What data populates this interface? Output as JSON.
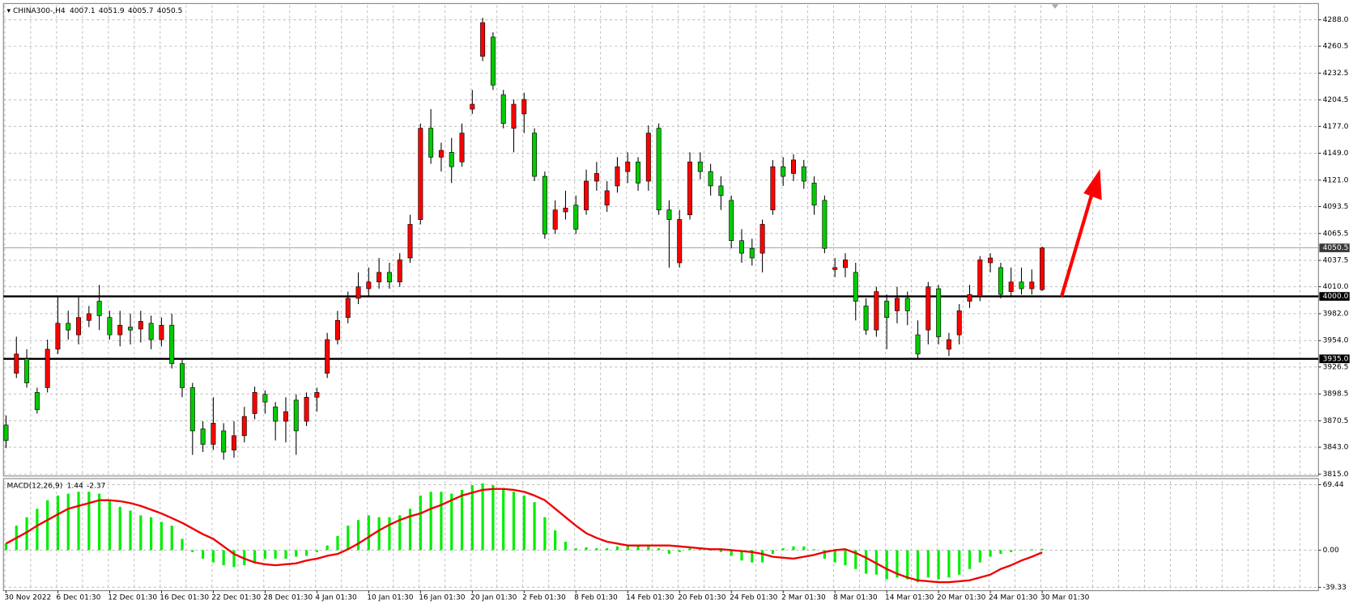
{
  "chart_data": [
    {
      "type": "candlestick",
      "title": "CHINA300-,H4",
      "title_values": [
        4007.1,
        4051.9,
        4005.7,
        4050.5
      ],
      "categories": [
        "30 Nov 2022",
        null,
        null,
        null,
        null,
        "6 Dec 01:30",
        null,
        null,
        null,
        null,
        "12 Dec 01:30",
        null,
        null,
        null,
        null,
        "16 Dec 01:30",
        null,
        null,
        null,
        null,
        "22 Dec 01:30",
        null,
        null,
        null,
        null,
        "28 Dec 01:30",
        null,
        null,
        null,
        null,
        "4 Jan 01:30",
        null,
        null,
        null,
        null,
        "10 Jan 01:30",
        null,
        null,
        null,
        null,
        "16 Jan 01:30",
        null,
        null,
        null,
        null,
        "20 Jan 01:30",
        null,
        null,
        null,
        null,
        "2 Feb 01:30",
        null,
        null,
        null,
        null,
        "8 Feb 01:30",
        null,
        null,
        null,
        null,
        "14 Feb 01:30",
        null,
        null,
        null,
        null,
        "20 Feb 01:30",
        null,
        null,
        null,
        null,
        "24 Feb 01:30",
        null,
        null,
        null,
        null,
        "2 Mar 01:30",
        null,
        null,
        null,
        null,
        "8 Mar 01:30",
        null,
        null,
        null,
        null,
        "14 Mar 01:30",
        null,
        null,
        null,
        null,
        "20 Mar 01:30",
        null,
        null,
        null,
        null,
        "24 Mar 01:30",
        null,
        null,
        null,
        null,
        "30 Mar 01:30"
      ],
      "open": [
        3866,
        3920,
        3935,
        3900,
        3905,
        3945,
        3972,
        3960,
        3975,
        3995,
        3978,
        3960,
        3968,
        3966,
        3972,
        3955,
        3970,
        3930,
        3905,
        3862,
        3846,
        3860,
        3840,
        3855,
        3878,
        3898,
        3885,
        3870,
        3892,
        3870,
        3895,
        3920,
        3955,
        3978,
        3998,
        4008,
        4015,
        4025,
        4015,
        4040,
        4080,
        4175,
        4145,
        4150,
        4140,
        4195,
        4250,
        4270,
        4210,
        4175,
        4190,
        4170,
        4125,
        4070,
        4088,
        4095,
        4090,
        4120,
        4095,
        4115,
        4130,
        4140,
        4120,
        4175,
        4090,
        4035,
        4085,
        4140,
        4130,
        4115,
        4100,
        4058,
        4050,
        4045,
        4090,
        4135,
        4128,
        4135,
        4118,
        4100,
        4028,
        4030,
        4025,
        3990,
        3965,
        3995,
        3985,
        3998,
        3960,
        3965,
        4008,
        3945,
        3960,
        3995,
        4000,
        4035,
        4030,
        4005,
        4015,
        4008,
        4007.1
      ],
      "high": [
        3876,
        3958,
        3945,
        3905,
        3955,
        4000,
        3985,
        4000,
        3990,
        4012,
        3985,
        3985,
        3982,
        3985,
        3980,
        3978,
        3982,
        3935,
        3910,
        3870,
        3895,
        3868,
        3870,
        3885,
        3906,
        3902,
        3890,
        3895,
        3898,
        3900,
        3905,
        3962,
        3985,
        4005,
        4025,
        4030,
        4040,
        4035,
        4045,
        4085,
        4180,
        4195,
        4160,
        4165,
        4180,
        4215,
        4290,
        4275,
        4215,
        4205,
        4212,
        4175,
        4130,
        4100,
        4110,
        4105,
        4132,
        4140,
        4120,
        4145,
        4150,
        4145,
        4178,
        4180,
        4100,
        4090,
        4150,
        4150,
        4138,
        4125,
        4105,
        4070,
        4060,
        4080,
        4142,
        4145,
        4148,
        4142,
        4125,
        4105,
        4040,
        4045,
        4035,
        3998,
        4010,
        4002,
        4010,
        4005,
        3975,
        4015,
        4012,
        3962,
        3992,
        4012,
        4042,
        4045,
        4035,
        4030,
        4030,
        4028,
        4051.9
      ],
      "low": [
        3842,
        3915,
        3905,
        3878,
        3900,
        3940,
        3955,
        3950,
        3968,
        3965,
        3955,
        3948,
        3950,
        3952,
        3945,
        3948,
        3925,
        3895,
        3835,
        3838,
        3840,
        3830,
        3832,
        3848,
        3872,
        3878,
        3850,
        3848,
        3835,
        3865,
        3880,
        3915,
        3950,
        3972,
        3992,
        4000,
        4008,
        4008,
        4010,
        4035,
        4075,
        4138,
        4130,
        4118,
        4135,
        4190,
        4245,
        4215,
        4175,
        4150,
        4170,
        4120,
        4060,
        4065,
        4080,
        4065,
        4085,
        4110,
        4088,
        4108,
        4118,
        4110,
        4110,
        4085,
        4030,
        4030,
        4080,
        4122,
        4105,
        4090,
        4050,
        4035,
        4032,
        4025,
        4085,
        4115,
        4120,
        4112,
        4085,
        4045,
        4020,
        4020,
        3975,
        3960,
        3958,
        3945,
        3972,
        3970,
        3935,
        3950,
        3950,
        3938,
        3950,
        3988,
        3995,
        4025,
        3998,
        4000,
        4002,
        4002,
        4005.7
      ],
      "close": [
        3850,
        3940,
        3910,
        3882,
        3945,
        3972,
        3965,
        3978,
        3982,
        3980,
        3960,
        3970,
        3965,
        3974,
        3955,
        3970,
        3930,
        3905,
        3860,
        3846,
        3868,
        3838,
        3855,
        3875,
        3900,
        3890,
        3870,
        3880,
        3860,
        3895,
        3900,
        3955,
        3975,
        3998,
        4010,
        4015,
        4025,
        4015,
        4038,
        4075,
        4175,
        4145,
        4152,
        4135,
        4170,
        4200,
        4285,
        4220,
        4180,
        4200,
        4205,
        4125,
        4065,
        4090,
        4092,
        4070,
        4120,
        4128,
        4110,
        4135,
        4140,
        4118,
        4170,
        4090,
        4080,
        4080,
        4140,
        4130,
        4115,
        4105,
        4058,
        4045,
        4040,
        4075,
        4135,
        4125,
        4142,
        4120,
        4095,
        4050,
        4030,
        4038,
        3995,
        3965,
        4005,
        3978,
        3998,
        3985,
        3940,
        4010,
        3958,
        3955,
        3985,
        4002,
        4038,
        4040,
        4002,
        4015,
        4008,
        4015,
        4050.5
      ],
      "up_color": "#ff0000",
      "down_color": "#00cc00",
      "ylim": [
        3813,
        4304
      ],
      "yticks": [
        {
          "value": 4288,
          "label": "4288.0"
        },
        4260.5,
        4232.5,
        4204.5,
        {
          "value": 4177,
          "label": "4177.0"
        },
        {
          "value": 4149,
          "label": "4149.0"
        },
        {
          "value": 4121,
          "label": "4121.0"
        },
        4093.5,
        4065.5,
        4037.5,
        {
          "value": 4010,
          "label": "4010.0"
        },
        {
          "value": 3982,
          "label": "3982.0"
        },
        {
          "value": 3954,
          "label": "3954.0"
        },
        3926.5,
        3898.5,
        3870.5,
        {
          "value": 3843,
          "label": "3843.0"
        },
        {
          "value": 3815,
          "label": "3815.0"
        }
      ],
      "grid": true,
      "hlines": [
        {
          "value": 4000,
          "label": "4000.0"
        },
        {
          "value": 3935,
          "label": "3935.0"
        }
      ],
      "current_price": 4050.5
    },
    {
      "type": "macd",
      "title": "MACD(12,26,9)",
      "title_values": [
        1.44,
        -2.37
      ],
      "series": [
        {
          "color": "#00ee00",
          "values": [
            7,
            26,
            35,
            44,
            53,
            58,
            60,
            62,
            62,
            60,
            53,
            46,
            42,
            37,
            35,
            30,
            26,
            12,
            -2,
            -9,
            -13,
            -16,
            -18,
            -16,
            -13,
            -9,
            -9,
            -9,
            -7,
            -6,
            -2,
            5,
            15,
            26,
            32,
            37,
            35,
            35,
            37,
            44,
            58,
            62,
            62,
            60,
            64,
            69,
            71,
            69,
            66,
            62,
            58,
            51,
            35,
            21,
            9,
            2,
            3,
            2,
            2,
            4,
            5,
            5,
            5,
            2,
            -4,
            -2,
            2,
            2,
            0,
            -2,
            -6,
            -11,
            -13,
            -13,
            -4,
            2,
            4,
            4,
            1,
            -9,
            -13,
            -16,
            -20,
            -25,
            -26,
            -31,
            -29,
            -31,
            -34,
            -29,
            -31,
            -29,
            -26,
            -20,
            -13,
            -7,
            -4,
            -2,
            0,
            1,
            1.44
          ]
        },
        {
          "color": "#ee0000",
          "values": [
            7,
            13,
            19,
            26,
            32,
            38,
            44,
            47,
            50,
            53,
            53,
            52,
            50,
            47,
            43,
            39,
            34,
            29,
            23,
            17,
            12,
            4,
            -4,
            -9,
            -13,
            -15,
            -16,
            -15,
            -14,
            -11,
            -9,
            -6,
            -4,
            1,
            7,
            14,
            21,
            27,
            32,
            36,
            39,
            44,
            48,
            53,
            58,
            61,
            64,
            65,
            65,
            64,
            62,
            58,
            53,
            44,
            35,
            26,
            18,
            13,
            9,
            7,
            5,
            5,
            5,
            5,
            5,
            4,
            3,
            2,
            1,
            1,
            0,
            -1,
            -2,
            -4,
            -7,
            -8,
            -9,
            -7,
            -5,
            -2,
            0,
            1,
            -3,
            -8,
            -14,
            -20,
            -25,
            -29,
            -32,
            -33,
            -34,
            -34,
            -33,
            -32,
            -29,
            -26,
            -20,
            -16,
            -11,
            -7,
            -2.37
          ]
        }
      ],
      "ylim": [
        -43,
        76
      ],
      "yticks": [
        69.44,
        {
          "value": 0,
          "label": "0.00"
        },
        -39.33
      ],
      "grid": true
    }
  ]
}
